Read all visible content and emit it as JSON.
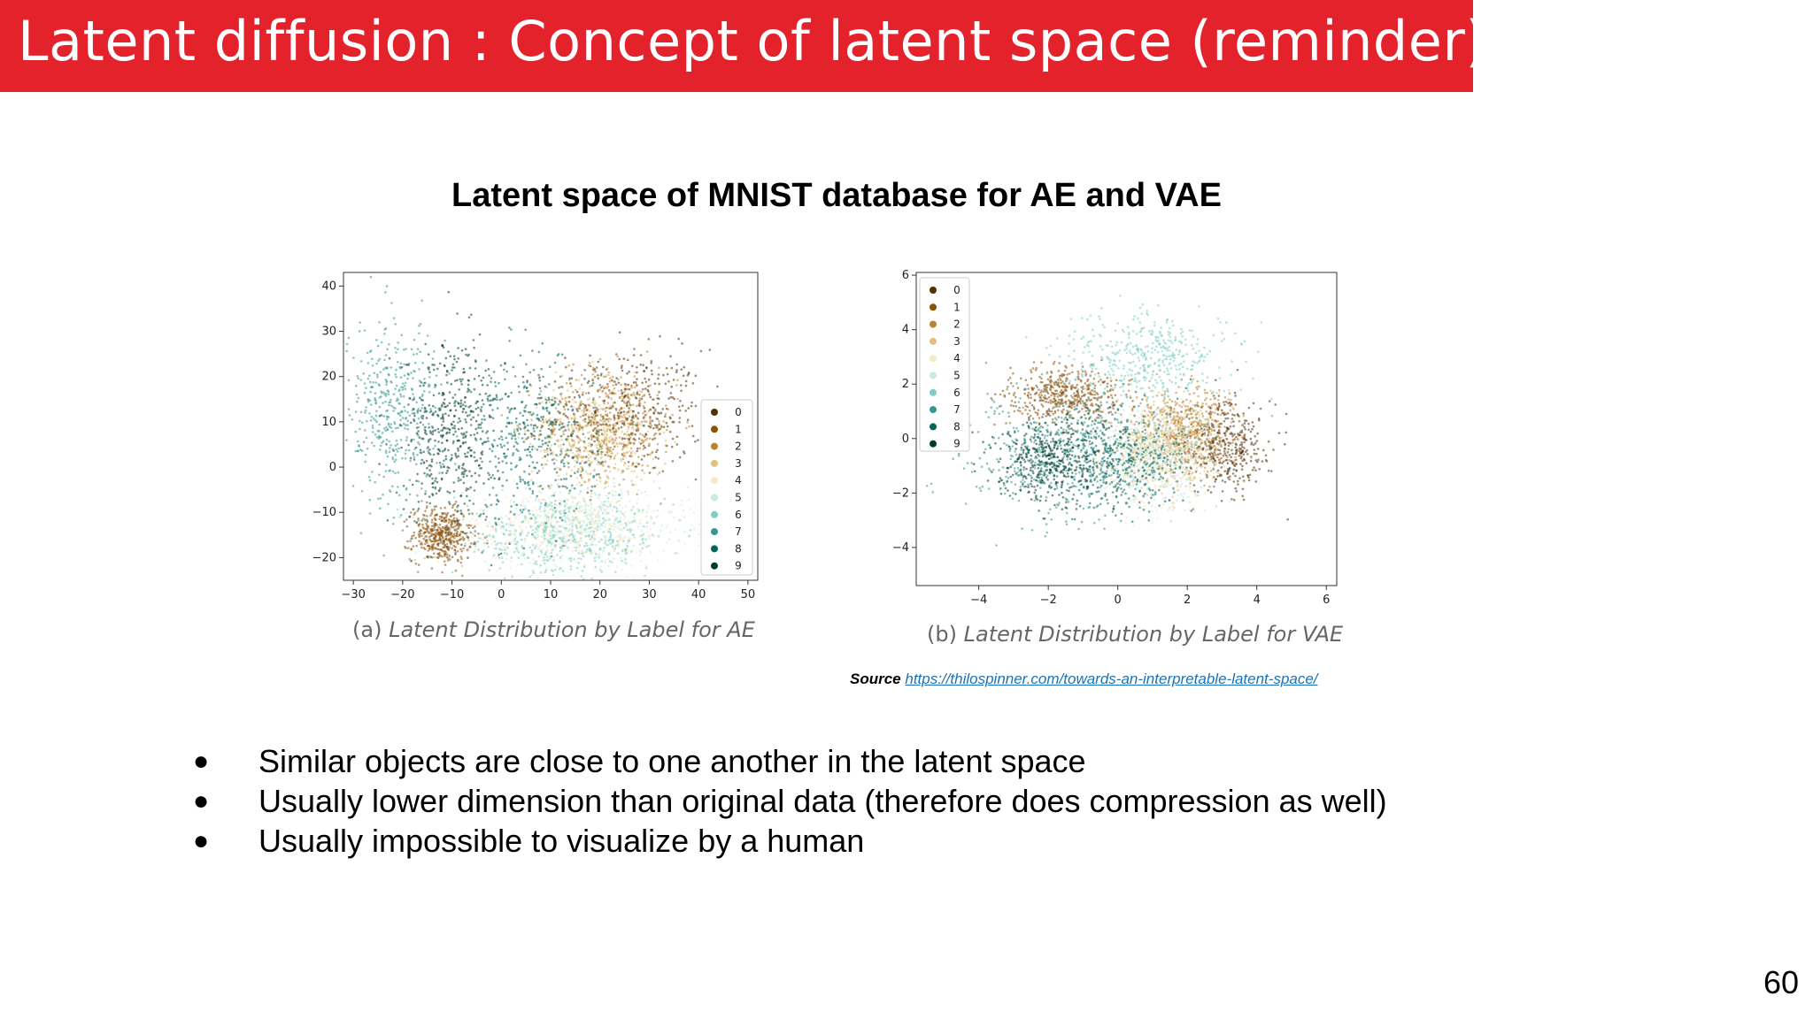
{
  "slide": {
    "title": "Latent diffusion :  Concept of latent space (reminder)",
    "subtitle": "Latent space of MNIST database for AE and VAE",
    "source_label": "Source",
    "source_url": "https://thilospinner.com/towards-an-interpretable-latent-space/",
    "bullets": [
      "Similar objects are close to one another in the latent space",
      "Usually lower dimension than original data (therefore does compression as well)",
      "Usually impossible to visualize by a human"
    ],
    "bullet_symbol": "●",
    "page_number": "60",
    "title_bar_color": "#e3222c"
  },
  "chart_data": [
    {
      "type": "scatter",
      "caption_prefix": "(a)",
      "caption": "Latent Distribution by Label for AE",
      "x_ticks": [
        "−30",
        "−20",
        "−10",
        "0",
        "10",
        "20",
        "30",
        "40",
        "50"
      ],
      "y_ticks": [
        "40",
        "30",
        "20",
        "10",
        "0",
        "−10",
        "−20"
      ],
      "xlim": [
        -32,
        52
      ],
      "ylim": [
        -25,
        43
      ],
      "legend_position": "center-right",
      "legend": [
        "0",
        "1",
        "2",
        "3",
        "4",
        "5",
        "6",
        "7",
        "8",
        "9"
      ],
      "colors": [
        "#543005",
        "#8c510a",
        "#bf812d",
        "#dfc27d",
        "#f6e8c3",
        "#c7eae5",
        "#80cdc1",
        "#35978f",
        "#01665e",
        "#003c30"
      ],
      "clusters": [
        {
          "label": "0",
          "cx": 25,
          "cy": 12,
          "sx": 8,
          "sy": 7
        },
        {
          "label": "1",
          "cx": -12,
          "cy": -15,
          "sx": 3,
          "sy": 3
        },
        {
          "label": "2",
          "cx": 22,
          "cy": 10,
          "sx": 7,
          "sy": 6
        },
        {
          "label": "3",
          "cx": 18,
          "cy": 6,
          "sx": 6,
          "sy": 6
        },
        {
          "label": "4",
          "cx": 14,
          "cy": -14,
          "sx": 10,
          "sy": 4
        },
        {
          "label": "5",
          "cx": 16,
          "cy": -12,
          "sx": 11,
          "sy": 4
        },
        {
          "label": "6",
          "cx": 12,
          "cy": -16,
          "sx": 11,
          "sy": 4
        },
        {
          "label": "7",
          "cx": -22,
          "cy": 12,
          "sx": 5,
          "sy": 10
        },
        {
          "label": "8",
          "cx": 6,
          "cy": 6,
          "sx": 7,
          "sy": 9
        },
        {
          "label": "9",
          "cx": -10,
          "cy": 8,
          "sx": 5,
          "sy": 10
        }
      ]
    },
    {
      "type": "scatter",
      "caption_prefix": "(b)",
      "caption": "Latent Distribution by Label for VAE",
      "x_ticks": [
        "−4",
        "−2",
        "0",
        "2",
        "4",
        "6"
      ],
      "y_ticks": [
        "6",
        "4",
        "2",
        "0",
        "−2",
        "−4"
      ],
      "xlim": [
        -5.8,
        6.3
      ],
      "ylim": [
        -5.4,
        6.1
      ],
      "legend_position": "upper-left",
      "legend": [
        "0",
        "1",
        "2",
        "3",
        "4",
        "5",
        "6",
        "7",
        "8",
        "9"
      ],
      "colors": [
        "#543005",
        "#8c510a",
        "#bf812d",
        "#dfc27d",
        "#f6e8c3",
        "#c7eae5",
        "#80cdc1",
        "#35978f",
        "#01665e",
        "#003c30"
      ],
      "clusters": [
        {
          "label": "0",
          "cx": 3.0,
          "cy": -0.3,
          "sx": 0.7,
          "sy": 0.8
        },
        {
          "label": "1",
          "cx": -1.5,
          "cy": 1.6,
          "sx": 0.8,
          "sy": 0.5
        },
        {
          "label": "2",
          "cx": 1.8,
          "cy": 0.5,
          "sx": 0.7,
          "sy": 0.7
        },
        {
          "label": "3",
          "cx": 1.5,
          "cy": -0.3,
          "sx": 0.8,
          "sy": 0.8
        },
        {
          "label": "4",
          "cx": 1.0,
          "cy": -0.8,
          "sx": 0.9,
          "sy": 0.9
        },
        {
          "label": "5",
          "cx": 1.0,
          "cy": -0.5,
          "sx": 0.9,
          "sy": 0.9
        },
        {
          "label": "6",
          "cx": 0.8,
          "cy": 3.0,
          "sx": 1.2,
          "sy": 0.8
        },
        {
          "label": "7",
          "cx": -2.0,
          "cy": -0.5,
          "sx": 1.3,
          "sy": 1.2
        },
        {
          "label": "8",
          "cx": 0.0,
          "cy": -0.8,
          "sx": 1.0,
          "sy": 1.0
        },
        {
          "label": "9",
          "cx": -1.8,
          "cy": -0.8,
          "sx": 0.9,
          "sy": 0.8
        }
      ]
    }
  ]
}
